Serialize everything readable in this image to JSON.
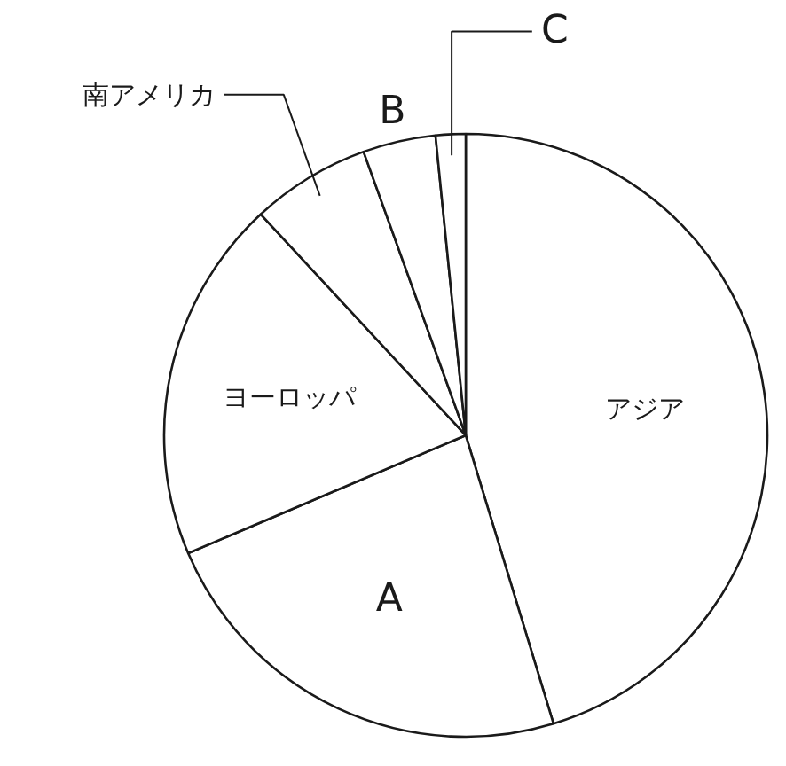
{
  "chart_data": {
    "type": "pie",
    "categories": [
      "アジア",
      "A",
      "ヨーロッパ",
      "南アメリカ",
      "B",
      "C"
    ],
    "values": [
      45.3,
      23.3,
      19.5,
      6.4,
      3.9,
      1.6
    ],
    "colors": [
      "#ffffff",
      "#ffffff",
      "#ffffff",
      "#ffffff",
      "#ffffff",
      "#ffffff"
    ]
  }
}
